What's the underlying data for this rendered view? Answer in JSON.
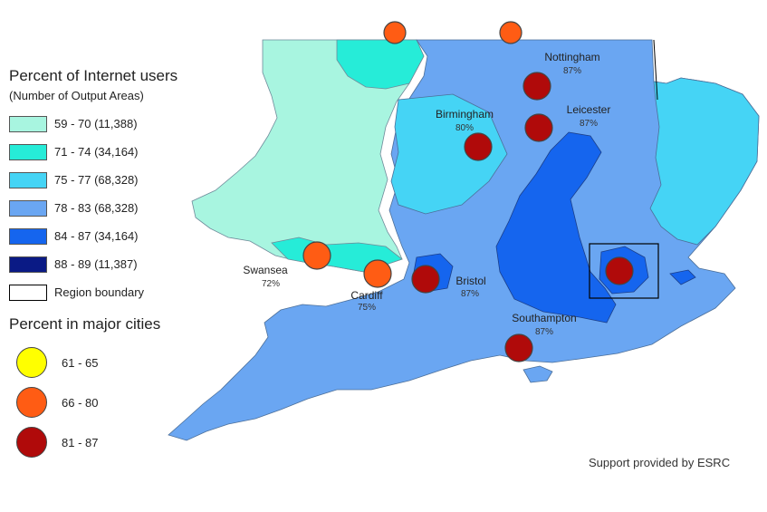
{
  "legend": {
    "title": "Percent of Internet users",
    "subtitle": "(Number of Output Areas)",
    "classes": [
      {
        "label": "59 - 70 (11,388)",
        "color": "#a8f5e0"
      },
      {
        "label": "71 - 74 (34,164)",
        "color": "#26ecd8"
      },
      {
        "label": "75 - 77 (68,328)",
        "color": "#45d4f5"
      },
      {
        "label": "78 - 83 (68,328)",
        "color": "#6aa6f2"
      },
      {
        "label": "84 - 87 (34,164)",
        "color": "#1565ee"
      },
      {
        "label": "88 - 89 (11,387)",
        "color": "#0a1a85"
      }
    ],
    "boundary_label": "Region boundary",
    "cities_title": "Percent in major cities",
    "city_classes": [
      {
        "label": "61 - 65",
        "color": "#ffff00"
      },
      {
        "label": "66 - 80",
        "color": "#ff5c14"
      },
      {
        "label": "81 - 87",
        "color": "#b00a0a"
      }
    ]
  },
  "cities": [
    {
      "name": "Nottingham",
      "pct": "87%"
    },
    {
      "name": "Leicester",
      "pct": "87%"
    },
    {
      "name": "Birmingham",
      "pct": "80%"
    },
    {
      "name": "Swansea",
      "pct": "72%"
    },
    {
      "name": "Cardiff",
      "pct": "75%"
    },
    {
      "name": "Bristol",
      "pct": "87%"
    },
    {
      "name": "Southampton",
      "pct": "87%"
    }
  ],
  "credit": "Support provided by ESRC"
}
